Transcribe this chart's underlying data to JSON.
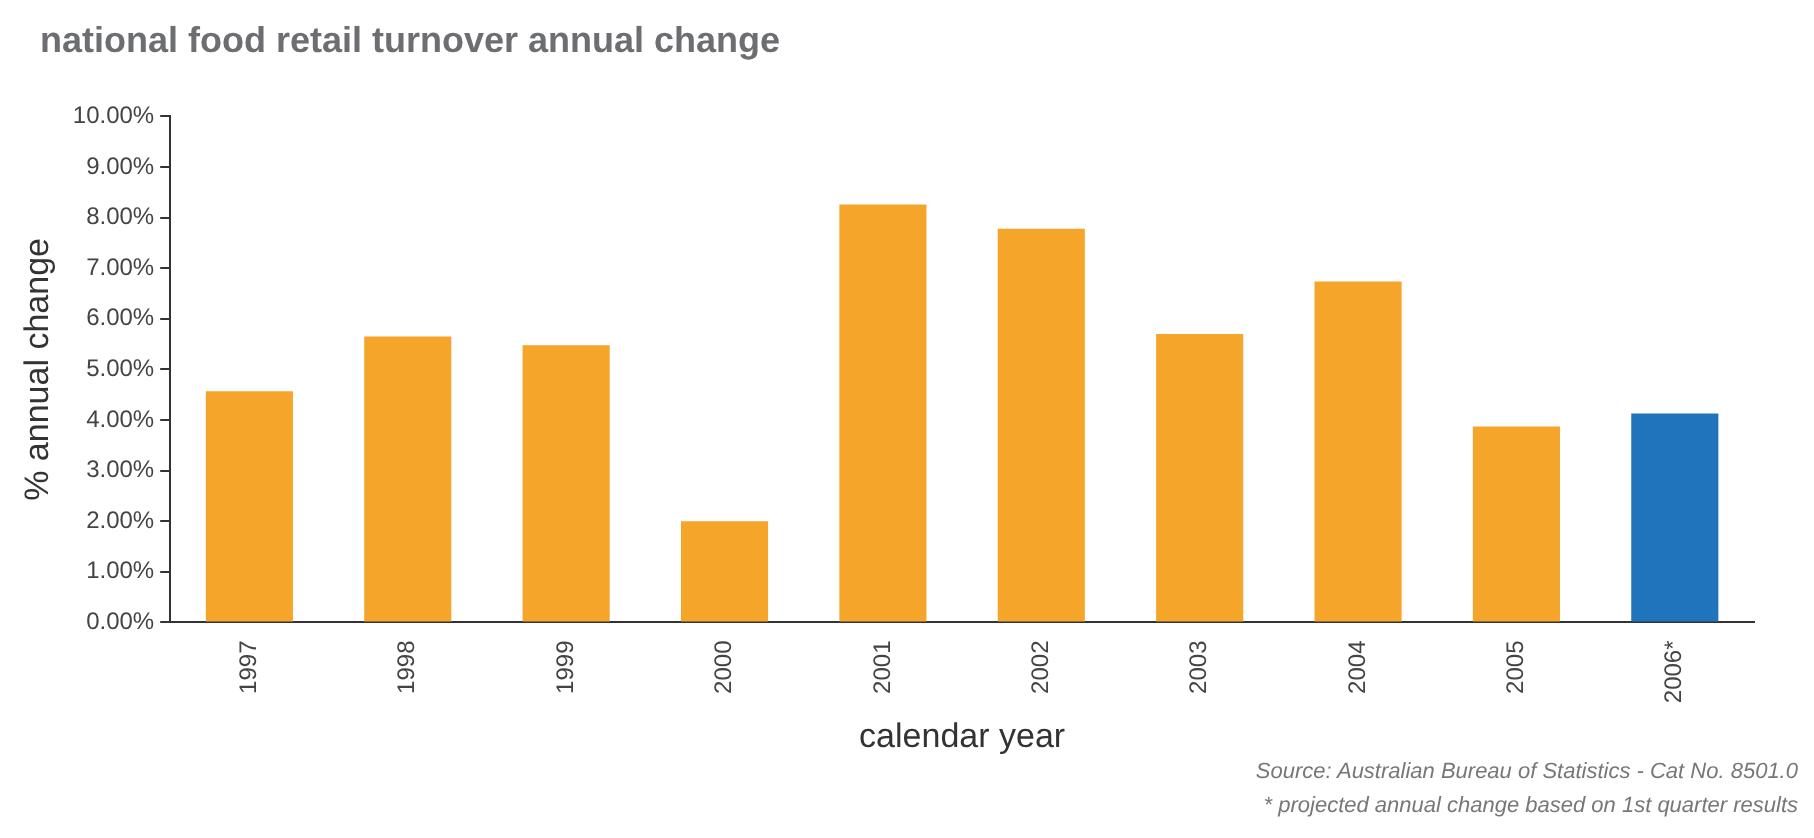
{
  "chart_data": {
    "type": "bar",
    "title": "national food retail turnover annual change",
    "xlabel": "calendar year",
    "ylabel": "% annual change",
    "categories": [
      "1997",
      "1998",
      "1999",
      "2000",
      "2001",
      "2002",
      "2003",
      "2004",
      "2005",
      "2006*"
    ],
    "values": [
      4.57,
      5.65,
      5.48,
      2.0,
      8.26,
      7.78,
      5.7,
      6.74,
      3.87,
      4.13
    ],
    "colors": [
      "#f5a52a",
      "#f5a52a",
      "#f5a52a",
      "#f5a52a",
      "#f5a52a",
      "#f5a52a",
      "#f5a52a",
      "#f5a52a",
      "#f5a52a",
      "#1f74bc"
    ],
    "ylim": [
      0,
      10
    ],
    "yticks": [
      {
        "value": 0,
        "label": "0.00%"
      },
      {
        "value": 1,
        "label": "1.00%"
      },
      {
        "value": 2,
        "label": "2.00%"
      },
      {
        "value": 3,
        "label": "3.00%"
      },
      {
        "value": 4,
        "label": "4.00%"
      },
      {
        "value": 5,
        "label": "5.00%"
      },
      {
        "value": 6,
        "label": "6.00%"
      },
      {
        "value": 7,
        "label": "7.00%"
      },
      {
        "value": 8,
        "label": "8.00%"
      },
      {
        "value": 9,
        "label": "9.00%"
      },
      {
        "value": 10,
        "label": "10.00%"
      }
    ],
    "grid": false,
    "legend": false,
    "annotations": [
      "Source: Australian Bureau of Statistics - Cat No. 8501.0",
      "* projected annual change based on 1st quarter results"
    ]
  }
}
